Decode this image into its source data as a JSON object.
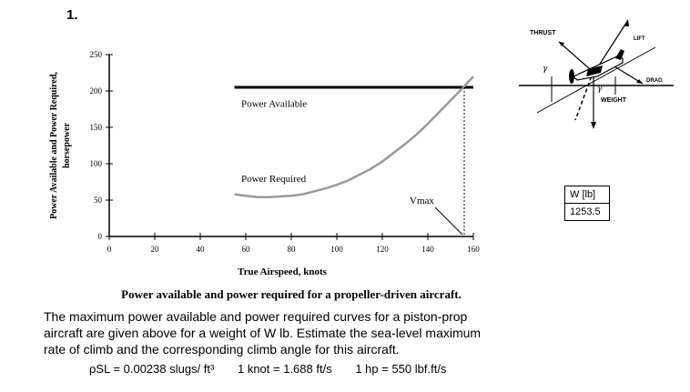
{
  "problem": {
    "number": "1.",
    "caption": "Power available and power required for a propeller-driven aircraft.",
    "text": "The maximum power available and power required curves for a piston-prop aircraft are given above for a weight of W lb. Estimate the sea-level maximum rate of climb and the corresponding climb angle for this aircraft.",
    "constants": [
      "ρSL = 0.00238 slugs/ ft³",
      "1 knot = 1.688 ft/s",
      "1 hp = 550 lbf.ft/s"
    ]
  },
  "weight_table": {
    "header": "W [lb]",
    "value": "1253.5"
  },
  "diagram": {
    "labels": {
      "thrust": "THRUST",
      "lift": "LIFT",
      "drag": "DRAG",
      "weight": "WEIGHT",
      "gamma": "γ"
    }
  },
  "chart_data": {
    "type": "line",
    "xlabel": "True Airspeed, knots",
    "ylabel": "Power Available and Power Required, horsepower",
    "ylabel_lines": [
      "Power Available and Power Required,",
      "horsepower"
    ],
    "xlim": [
      0,
      160
    ],
    "ylim": [
      0,
      250
    ],
    "xticks": [
      0,
      20,
      40,
      60,
      80,
      100,
      120,
      140,
      160
    ],
    "yticks": [
      0,
      50,
      100,
      150,
      200,
      250
    ],
    "series": [
      {
        "name": "Power Available",
        "x": [
          55,
          160
        ],
        "y": [
          205,
          205
        ]
      },
      {
        "name": "Power Required",
        "x": [
          55,
          60,
          65,
          70,
          75,
          80,
          85,
          90,
          95,
          100,
          105,
          110,
          115,
          120,
          125,
          130,
          135,
          140,
          145,
          150,
          155,
          160
        ],
        "y": [
          58,
          56,
          54,
          54,
          55,
          56,
          58,
          62,
          66,
          71,
          77,
          85,
          93,
          103,
          115,
          127,
          140,
          155,
          171,
          187,
          203,
          220
        ]
      }
    ],
    "annotations": [
      {
        "text": "Power Available",
        "x": 58,
        "y": 178
      },
      {
        "text": "Power Required",
        "x": 58,
        "y": 75
      },
      {
        "text": "Vmax",
        "x": 132,
        "y": 45
      }
    ],
    "vmax_knots": 156
  }
}
